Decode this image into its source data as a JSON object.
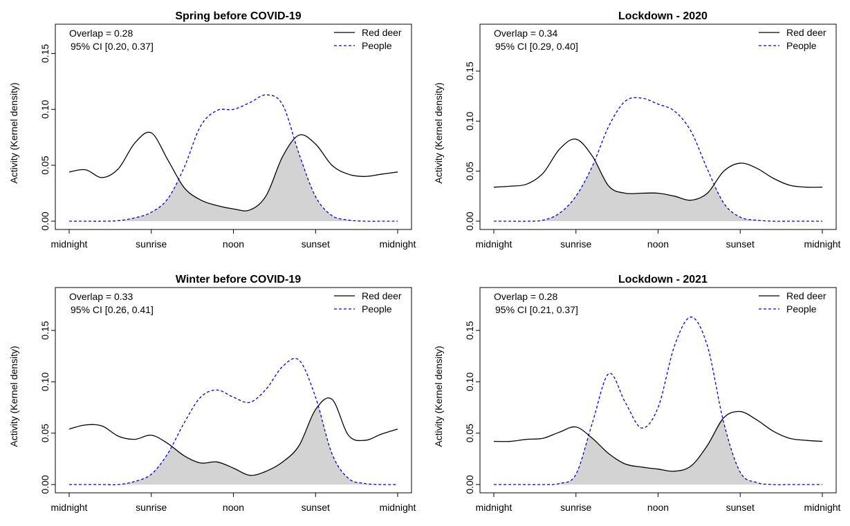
{
  "chart_data": [
    {
      "type": "area",
      "title": "Spring before COVID-19",
      "ylabel": "Activity (Kernel density)",
      "xlabel": "",
      "x_ticks": [
        "midnight",
        "sunrise",
        "noon",
        "sunset",
        "midnight"
      ],
      "y_ticks": [
        "0.00",
        "0.05",
        "0.10",
        "0.15"
      ],
      "ylim": [
        0,
        0.17
      ],
      "annotation": {
        "overlap": "Overlap = 0.28",
        "ci": "95% CI [0.20, 0.37]"
      },
      "legend": {
        "position": "top-right"
      },
      "x": [
        0,
        0.05,
        0.1,
        0.15,
        0.2,
        0.25,
        0.3,
        0.35,
        0.4,
        0.45,
        0.5,
        0.55,
        0.6,
        0.65,
        0.7,
        0.75,
        0.8,
        0.85,
        0.9,
        0.95,
        1
      ],
      "series": [
        {
          "name": "Red deer",
          "color": "#000000",
          "style": "solid",
          "values": [
            0.044,
            0.046,
            0.039,
            0.047,
            0.07,
            0.079,
            0.055,
            0.03,
            0.019,
            0.014,
            0.011,
            0.01,
            0.023,
            0.058,
            0.077,
            0.069,
            0.05,
            0.042,
            0.04,
            0.042,
            0.044
          ]
        },
        {
          "name": "People",
          "color": "#0000dd",
          "style": "dashed",
          "values": [
            0,
            0,
            0,
            0.0005,
            0.003,
            0.008,
            0.02,
            0.048,
            0.085,
            0.099,
            0.1,
            0.106,
            0.113,
            0.104,
            0.06,
            0.022,
            0.005,
            0.001,
            0,
            0,
            0
          ]
        }
      ]
    },
    {
      "type": "area",
      "title": "Lockdown - 2020",
      "ylabel": "Activity (Kernel density)",
      "xlabel": "",
      "x_ticks": [
        "midnight",
        "sunrise",
        "noon",
        "sunset",
        "midnight"
      ],
      "y_ticks": [
        "0.00",
        "0.05",
        "0.10",
        "0.15"
      ],
      "ylim": [
        0,
        0.19
      ],
      "annotation": {
        "overlap": "Overlap = 0.34",
        "ci": "95% CI [0.29, 0.40]"
      },
      "legend": {
        "position": "top-right"
      },
      "x": [
        0,
        0.05,
        0.1,
        0.15,
        0.2,
        0.25,
        0.3,
        0.35,
        0.4,
        0.45,
        0.5,
        0.55,
        0.6,
        0.65,
        0.7,
        0.75,
        0.8,
        0.85,
        0.9,
        0.95,
        1
      ],
      "series": [
        {
          "name": "Red deer",
          "color": "#000000",
          "style": "solid",
          "values": [
            0.034,
            0.035,
            0.037,
            0.048,
            0.072,
            0.082,
            0.065,
            0.035,
            0.028,
            0.028,
            0.028,
            0.025,
            0.021,
            0.028,
            0.05,
            0.058,
            0.053,
            0.043,
            0.036,
            0.034,
            0.034
          ]
        },
        {
          "name": "People",
          "color": "#0000dd",
          "style": "dashed",
          "values": [
            0,
            0,
            0,
            0.001,
            0.008,
            0.025,
            0.055,
            0.095,
            0.12,
            0.123,
            0.117,
            0.11,
            0.09,
            0.052,
            0.018,
            0.004,
            0.001,
            0,
            0,
            0,
            0
          ]
        }
      ]
    },
    {
      "type": "area",
      "title": "Winter before COVID-19",
      "ylabel": "Activity (Kernel density)",
      "xlabel": "",
      "x_ticks": [
        "midnight",
        "sunrise",
        "noon",
        "sunset",
        "midnight"
      ],
      "y_ticks": [
        "0.00",
        "0.05",
        "0.10",
        "0.15"
      ],
      "ylim": [
        0,
        0.185
      ],
      "annotation": {
        "overlap": "Overlap = 0.33",
        "ci": "95% CI [0.26, 0.41]"
      },
      "legend": {
        "position": "top-right"
      },
      "x": [
        0,
        0.05,
        0.1,
        0.15,
        0.2,
        0.25,
        0.3,
        0.35,
        0.4,
        0.45,
        0.5,
        0.55,
        0.6,
        0.65,
        0.7,
        0.75,
        0.8,
        0.85,
        0.9,
        0.95,
        1
      ],
      "series": [
        {
          "name": "Red deer",
          "color": "#000000",
          "style": "solid",
          "values": [
            0.054,
            0.058,
            0.057,
            0.047,
            0.044,
            0.048,
            0.04,
            0.028,
            0.021,
            0.022,
            0.016,
            0.009,
            0.013,
            0.022,
            0.038,
            0.073,
            0.083,
            0.048,
            0.043,
            0.049,
            0.054
          ]
        },
        {
          "name": "People",
          "color": "#0000dd",
          "style": "dashed",
          "values": [
            0,
            0,
            0,
            0,
            0.003,
            0.01,
            0.03,
            0.06,
            0.085,
            0.092,
            0.085,
            0.08,
            0.093,
            0.115,
            0.121,
            0.085,
            0.03,
            0.006,
            0.001,
            0,
            0
          ]
        }
      ]
    },
    {
      "type": "area",
      "title": "Lockdown - 2021",
      "ylabel": "Activity (Kernel density)",
      "xlabel": "",
      "x_ticks": [
        "midnight",
        "sunrise",
        "noon",
        "sunset",
        "midnight"
      ],
      "y_ticks": [
        "0.00",
        "0.05",
        "0.10",
        "0.15"
      ],
      "ylim": [
        0,
        0.185
      ],
      "annotation": {
        "overlap": "Overlap = 0.28",
        "ci": "95% CI [0.21, 0.37]"
      },
      "legend": {
        "position": "top-right"
      },
      "x": [
        0,
        0.05,
        0.1,
        0.15,
        0.2,
        0.25,
        0.3,
        0.35,
        0.4,
        0.45,
        0.5,
        0.55,
        0.6,
        0.65,
        0.7,
        0.75,
        0.8,
        0.85,
        0.9,
        0.95,
        1
      ],
      "series": [
        {
          "name": "Red deer",
          "color": "#000000",
          "style": "solid",
          "values": [
            0.042,
            0.042,
            0.044,
            0.045,
            0.051,
            0.056,
            0.045,
            0.03,
            0.02,
            0.017,
            0.015,
            0.013,
            0.018,
            0.038,
            0.065,
            0.071,
            0.063,
            0.052,
            0.045,
            0.043,
            0.042
          ]
        },
        {
          "name": "People",
          "color": "#0000dd",
          "style": "dashed",
          "values": [
            0,
            0,
            0,
            0,
            0.001,
            0.01,
            0.06,
            0.108,
            0.08,
            0.055,
            0.075,
            0.135,
            0.163,
            0.135,
            0.06,
            0.012,
            0.002,
            0,
            0,
            0,
            0
          ]
        }
      ]
    }
  ]
}
